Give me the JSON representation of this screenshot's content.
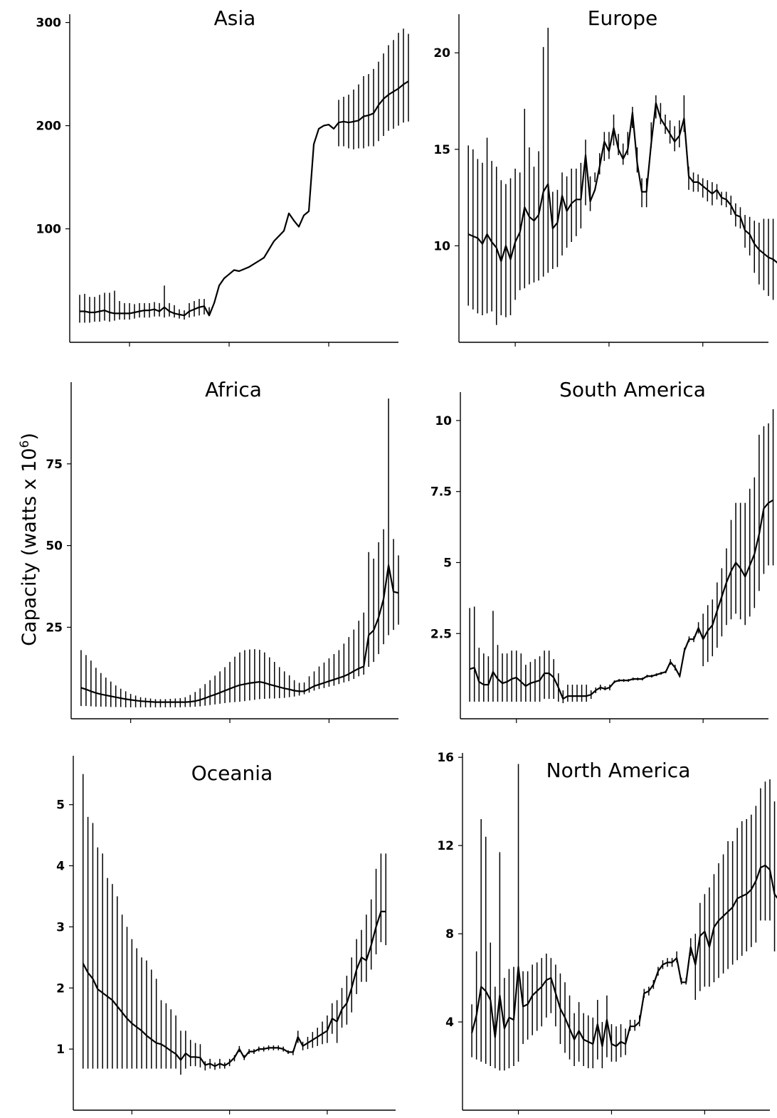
{
  "figure": {
    "ylabel": "Capacity (watts x 10",
    "ylabel_sup": "6",
    "ylabel_close": ")"
  },
  "chart_data": [
    {
      "type": "line",
      "title": "Asia",
      "xlim": [
        1948,
        2014
      ],
      "ylim": [
        -10,
        308
      ],
      "yticks": [
        100,
        200,
        300
      ],
      "xticks": [
        1960,
        1980,
        2000
      ],
      "x_start": 1950,
      "values": [
        20,
        20,
        19,
        19,
        20,
        21,
        19,
        18,
        18,
        18,
        18,
        19,
        20,
        21,
        21,
        22,
        20,
        24,
        20,
        18,
        17,
        16,
        20,
        22,
        24,
        25,
        16,
        28,
        45,
        52,
        56,
        60,
        59,
        61,
        63,
        66,
        69,
        72,
        80,
        88,
        93,
        98,
        115,
        108,
        102,
        113,
        117,
        182,
        197,
        200,
        201,
        197,
        203,
        204,
        203,
        204,
        205,
        209,
        210,
        212,
        220,
        226,
        230,
        233,
        236,
        240,
        243
      ],
      "err_low": [
        9,
        9,
        9,
        10,
        10,
        11,
        10,
        11,
        12,
        12,
        12,
        13,
        14,
        14,
        14,
        15,
        15,
        14,
        15,
        14,
        13,
        12,
        14,
        15,
        16,
        17,
        16
      ],
      "err_high": [
        36,
        37,
        34,
        34,
        36,
        38,
        38,
        40,
        30,
        28,
        28,
        27,
        28,
        28,
        28,
        29,
        28,
        45,
        28,
        26,
        22,
        21,
        28,
        30,
        32,
        32,
        24
      ],
      "err_low2": [
        180,
        180,
        178,
        177,
        178,
        178,
        180,
        180,
        185,
        190,
        195,
        197,
        200,
        203,
        204
      ],
      "err_high2": [
        225,
        228,
        230,
        235,
        240,
        248,
        250,
        255,
        262,
        270,
        278,
        283,
        290,
        294,
        289
      ]
    },
    {
      "type": "line",
      "title": "Europe",
      "xlim": [
        1948,
        2014
      ],
      "ylim": [
        5,
        22
      ],
      "yticks": [
        10,
        15,
        20
      ],
      "xticks": [
        1960,
        1980,
        2000
      ],
      "x_start": 1950,
      "values": [
        10.6,
        10.5,
        10.4,
        10.1,
        10.6,
        10.2,
        9.9,
        9.2,
        10.0,
        9.3,
        10.2,
        10.7,
        12.0,
        11.5,
        11.3,
        11.6,
        12.8,
        13.2,
        10.9,
        11.2,
        12.6,
        11.8,
        12.2,
        12.4,
        12.4,
        14.7,
        12.3,
        12.9,
        14.1,
        15.4,
        14.9,
        16.1,
        15.0,
        14.5,
        15.0,
        16.9,
        14.3,
        12.8,
        12.8,
        15.3,
        17.4,
        16.6,
        16.2,
        15.8,
        15.4,
        15.7,
        16.6,
        13.6,
        13.3,
        13.3,
        13.1,
        12.9,
        12.7,
        12.9,
        12.5,
        12.4,
        12.1,
        11.6,
        11.5,
        10.8,
        10.6,
        10.1,
        9.8,
        9.6,
        9.4,
        9.3,
        9.1
      ],
      "err_low": [
        6.9,
        6.7,
        6.5,
        6.4,
        6.5,
        6.6,
        5.9,
        6.4,
        6.3,
        6.4,
        7.2,
        7.7,
        7.8,
        8.0,
        8.1,
        8.2,
        8.4,
        8.6,
        8.8,
        8.9,
        9.5,
        9.9,
        10.2,
        10.5,
        10.9,
        12.1,
        11.8,
        13.3,
        13.7,
        14.4,
        14.5,
        15.2,
        14.7,
        14.2,
        14.7,
        16.1,
        13.8,
        12.0,
        12.0,
        15.1,
        16.6,
        16.3,
        15.8,
        15.3,
        14.9,
        15.1,
        15.9,
        12.9,
        12.8,
        12.8,
        12.5,
        12.3,
        12.1,
        12.4,
        12.1,
        12.0,
        11.6,
        11.0,
        10.9,
        9.9,
        9.5,
        8.6,
        8.0,
        7.7,
        7.4,
        7.2,
        7.0
      ],
      "err_high": [
        15.2,
        15.0,
        14.5,
        14.3,
        15.6,
        14.4,
        14.1,
        13.4,
        13.2,
        13.5,
        14.0,
        13.8,
        17.1,
        15.1,
        14.1,
        14.9,
        20.3,
        21.3,
        12.8,
        12.9,
        13.8,
        13.6,
        14.0,
        14.0,
        14.3,
        15.5,
        13.6,
        13.8,
        14.8,
        15.9,
        15.9,
        16.8,
        15.8,
        15.3,
        15.9,
        17.2,
        15.1,
        13.5,
        13.5,
        16.4,
        17.8,
        17.4,
        16.8,
        16.5,
        16.2,
        16.5,
        17.8,
        14.1,
        13.8,
        13.7,
        13.5,
        13.4,
        13.3,
        13.2,
        12.8,
        12.8,
        12.6,
        12.2,
        12.0,
        11.6,
        11.5,
        11.3,
        11.2,
        11.4,
        11.4,
        11.4,
        11.4
      ]
    },
    {
      "type": "line",
      "title": "Africa",
      "xlim": [
        1948,
        2014
      ],
      "ylim": [
        -3,
        100
      ],
      "yticks": [
        25,
        50,
        75
      ],
      "xticks": [
        1960,
        1980,
        2000
      ],
      "x_start": 1950,
      "values": [
        6.5,
        6.0,
        5.4,
        4.9,
        4.5,
        4.2,
        3.9,
        3.6,
        3.3,
        3.0,
        2.8,
        2.6,
        2.4,
        2.3,
        2.2,
        2.1,
        2.1,
        2.1,
        2.1,
        2.1,
        2.1,
        2.1,
        2.2,
        2.4,
        2.8,
        3.3,
        3.9,
        4.4,
        5.0,
        5.6,
        6.2,
        6.8,
        7.3,
        7.6,
        7.9,
        8.1,
        8.3,
        8.0,
        7.5,
        7.1,
        6.7,
        6.3,
        6.0,
        5.6,
        5.4,
        5.4,
        6.2,
        7.0,
        7.5,
        8.0,
        8.5,
        9.0,
        9.5,
        10.0,
        10.7,
        11.6,
        12.4,
        13.0,
        22.6,
        24.1,
        28.0,
        33.7,
        44.0,
        35.9,
        35.5
      ],
      "err_low": [
        0.9,
        0.9,
        0.8,
        0.7,
        0.7,
        0.7,
        0.6,
        0.6,
        0.6,
        0.5,
        0.5,
        0.5,
        0.5,
        0.5,
        0.5,
        0.5,
        0.5,
        0.5,
        0.5,
        0.5,
        0.5,
        0.6,
        0.6,
        0.7,
        0.8,
        1.0,
        1.2,
        1.4,
        1.6,
        1.8,
        2.0,
        2.1,
        2.2,
        2.4,
        2.6,
        2.8,
        3.0,
        3.1,
        3.2,
        3.2,
        3.3,
        3.4,
        3.6,
        3.8,
        4.1,
        4.5,
        5.0,
        5.6,
        6.1,
        6.4,
        6.8,
        7.1,
        7.6,
        8.1,
        8.5,
        9.2,
        10.0,
        10.5,
        12.9,
        14.4,
        16.8,
        19.8,
        22.6,
        24.2,
        25.8
      ],
      "err_high": [
        18.0,
        16.5,
        14.8,
        12.6,
        11.0,
        9.6,
        8.4,
        7.2,
        6.2,
        5.4,
        4.6,
        4.1,
        3.6,
        3.4,
        3.2,
        3.0,
        3.0,
        3.0,
        3.1,
        3.2,
        3.3,
        3.6,
        4.3,
        5.2,
        6.3,
        7.6,
        8.8,
        10.2,
        11.5,
        12.8,
        14.4,
        16.0,
        17.3,
        18.0,
        18.2,
        18.3,
        18.1,
        17.3,
        15.8,
        14.4,
        12.8,
        11.5,
        10.3,
        8.8,
        8.0,
        8.1,
        10.0,
        11.5,
        13.0,
        14.2,
        15.5,
        16.8,
        18.0,
        20.0,
        22.0,
        24.3,
        27.0,
        29.5,
        48.0,
        46.0,
        51.0,
        55.0,
        95.0,
        52.0,
        47.0
      ]
    },
    {
      "type": "line",
      "title": "South America",
      "xlim": [
        1948,
        2014
      ],
      "ylim": [
        -0.5,
        11
      ],
      "yticks": [
        2.5,
        5,
        7.5,
        10
      ],
      "tick_labels": [
        "2.5",
        "5",
        "7.5",
        "10"
      ],
      "xticks": [
        1960,
        1980,
        2000
      ],
      "x_start": 1950,
      "values": [
        1.25,
        1.3,
        0.8,
        0.7,
        0.7,
        1.15,
        0.9,
        0.75,
        0.8,
        0.9,
        0.95,
        0.8,
        0.65,
        0.75,
        0.8,
        0.85,
        1.1,
        1.1,
        0.95,
        0.6,
        0.2,
        0.3,
        0.3,
        0.3,
        0.3,
        0.3,
        0.35,
        0.5,
        0.6,
        0.55,
        0.6,
        0.8,
        0.85,
        0.85,
        0.85,
        0.9,
        0.9,
        0.9,
        1.0,
        1.0,
        1.05,
        1.1,
        1.15,
        1.5,
        1.3,
        1.0,
        1.9,
        2.3,
        2.3,
        2.7,
        2.3,
        2.6,
        2.8,
        3.3,
        3.8,
        4.3,
        4.7,
        5.0,
        4.8,
        4.5,
        4.9,
        5.3,
        6.0,
        6.9,
        7.1,
        7.2
      ],
      "err_low": [
        0.1,
        0.1,
        0.1,
        0.1,
        0.1,
        0.1,
        0.1,
        0.1,
        0.1,
        0.1,
        0.1,
        0.1,
        0.1,
        0.1,
        0.1,
        0.1,
        0.2,
        0.2,
        0.2,
        0.1,
        0.05,
        0.1,
        0.1,
        0.1,
        0.1,
        0.1,
        0.2,
        0.4,
        0.5,
        0.5,
        0.5,
        0.75,
        0.8,
        0.8,
        0.8,
        0.85,
        0.85,
        0.85,
        0.95,
        0.95,
        1.0,
        1.05,
        1.1,
        1.4,
        1.2,
        0.95,
        1.85,
        2.2,
        2.2,
        2.5,
        1.35,
        1.5,
        1.7,
        2.0,
        2.4,
        2.8,
        3.0,
        3.2,
        3.0,
        2.8,
        3.1,
        3.4,
        4.0,
        4.6,
        4.9,
        4.9
      ],
      "err_high": [
        3.4,
        3.45,
        2.0,
        1.8,
        1.7,
        3.3,
        2.1,
        1.8,
        1.8,
        1.9,
        1.9,
        1.8,
        1.4,
        1.5,
        1.6,
        1.7,
        1.9,
        1.9,
        1.6,
        1.1,
        0.5,
        0.7,
        0.7,
        0.7,
        0.7,
        0.7,
        0.5,
        0.6,
        0.7,
        0.65,
        0.7,
        0.85,
        0.9,
        0.9,
        0.9,
        0.95,
        0.95,
        0.95,
        1.05,
        1.05,
        1.1,
        1.15,
        1.2,
        1.6,
        1.4,
        1.1,
        2.0,
        2.4,
        2.4,
        2.9,
        3.2,
        3.5,
        3.7,
        4.3,
        4.8,
        5.5,
        6.5,
        7.1,
        7.1,
        7.1,
        7.6,
        8.0,
        9.5,
        9.8,
        9.9,
        10.4
      ]
    },
    {
      "type": "line",
      "title": "Oceania",
      "xlim": [
        1948,
        2014
      ],
      "ylim": [
        0,
        5.8
      ],
      "yticks": [
        1,
        2,
        3,
        4,
        5
      ],
      "xticks": [
        1960,
        1980,
        2000
      ],
      "x_start": 1950,
      "values": [
        2.4,
        2.25,
        2.15,
        1.98,
        1.92,
        1.86,
        1.8,
        1.7,
        1.6,
        1.5,
        1.42,
        1.36,
        1.3,
        1.22,
        1.16,
        1.1,
        1.08,
        1.03,
        0.97,
        0.92,
        0.82,
        0.93,
        0.87,
        0.87,
        0.86,
        0.74,
        0.76,
        0.72,
        0.76,
        0.73,
        0.78,
        0.86,
        1.0,
        0.86,
        0.96,
        0.96,
        1.0,
        1.0,
        1.02,
        1.02,
        1.02,
        1.0,
        0.95,
        0.95,
        1.2,
        1.05,
        1.1,
        1.15,
        1.2,
        1.25,
        1.3,
        1.5,
        1.45,
        1.65,
        1.75,
        2.0,
        2.3,
        2.5,
        2.45,
        2.7,
        3.0,
        3.25,
        3.25
      ],
      "err_low": [
        0.68,
        0.68,
        0.68,
        0.68,
        0.68,
        0.68,
        0.68,
        0.68,
        0.68,
        0.68,
        0.68,
        0.68,
        0.68,
        0.68,
        0.68,
        0.68,
        0.68,
        0.68,
        0.68,
        0.68,
        0.58,
        0.68,
        0.72,
        0.72,
        0.7,
        0.65,
        0.68,
        0.66,
        0.68,
        0.68,
        0.72,
        0.8,
        0.95,
        0.82,
        0.92,
        0.92,
        0.96,
        0.96,
        0.98,
        0.98,
        0.98,
        0.96,
        0.92,
        0.9,
        1.1,
        0.98,
        1.0,
        1.02,
        1.05,
        1.08,
        1.1,
        1.25,
        1.1,
        1.35,
        1.4,
        1.6,
        1.9,
        2.1,
        2.1,
        2.3,
        2.55,
        2.75,
        2.7
      ],
      "err_high": [
        5.5,
        4.8,
        4.7,
        4.3,
        4.2,
        3.8,
        3.7,
        3.5,
        3.2,
        3.0,
        2.8,
        2.65,
        2.5,
        2.45,
        2.3,
        2.15,
        1.8,
        1.75,
        1.65,
        1.55,
        1.3,
        1.3,
        1.15,
        1.1,
        1.08,
        0.8,
        0.84,
        0.78,
        0.84,
        0.78,
        0.84,
        0.9,
        1.05,
        0.9,
        1.0,
        1.0,
        1.04,
        1.04,
        1.06,
        1.06,
        1.06,
        1.04,
        0.98,
        0.98,
        1.3,
        1.12,
        1.2,
        1.28,
        1.35,
        1.45,
        1.55,
        1.75,
        1.8,
        2.0,
        2.2,
        2.5,
        2.8,
        2.95,
        3.2,
        3.45,
        3.95,
        4.2,
        4.2
      ]
    },
    {
      "type": "line",
      "title": "North America",
      "xlim": [
        1948,
        2014
      ],
      "ylim": [
        0,
        16.2
      ],
      "yticks": [
        4,
        8,
        12,
        16
      ],
      "xticks": [
        1960,
        1980,
        2000
      ],
      "x_start": 1950,
      "values": [
        3.5,
        4.3,
        5.6,
        5.4,
        5.0,
        3.3,
        5.2,
        3.7,
        4.2,
        4.1,
        6.5,
        4.7,
        4.8,
        5.2,
        5.4,
        5.6,
        5.9,
        6.0,
        5.3,
        4.6,
        4.2,
        3.7,
        3.2,
        3.6,
        3.2,
        3.1,
        3.0,
        3.9,
        2.9,
        4.1,
        3.0,
        2.9,
        3.1,
        3.0,
        3.8,
        3.8,
        4.0,
        5.3,
        5.4,
        5.7,
        6.3,
        6.6,
        6.7,
        6.7,
        6.9,
        5.8,
        5.8,
        7.4,
        6.6,
        7.9,
        8.1,
        7.4,
        8.3,
        8.6,
        8.8,
        9.0,
        9.2,
        9.6,
        9.7,
        9.8,
        10.0,
        10.4,
        11.0,
        11.1,
        10.9,
        9.8,
        9.5
      ],
      "err_low": [
        2.4,
        2.3,
        2.2,
        2.1,
        2.0,
        1.9,
        1.8,
        1.8,
        1.9,
        2.0,
        2.2,
        3.0,
        3.2,
        3.4,
        3.6,
        3.8,
        4.2,
        4.4,
        3.8,
        3.0,
        2.6,
        2.3,
        2.0,
        2.2,
        2.0,
        1.9,
        1.9,
        2.3,
        1.9,
        2.4,
        2.2,
        2.2,
        2.4,
        2.5,
        3.6,
        3.6,
        3.8,
        5.1,
        5.2,
        5.5,
        6.1,
        6.4,
        6.5,
        6.5,
        6.7,
        5.7,
        5.7,
        7.0,
        5.0,
        5.4,
        5.6,
        5.6,
        5.8,
        6.0,
        6.2,
        6.4,
        6.6,
        6.8,
        7.0,
        7.2,
        7.4,
        7.6,
        8.6,
        8.6,
        8.6,
        7.2,
        7.0
      ],
      "err_high": [
        4.8,
        7.2,
        13.2,
        12.4,
        7.6,
        5.6,
        11.7,
        6.0,
        6.4,
        6.5,
        15.7,
        6.3,
        6.3,
        6.6,
        6.7,
        6.9,
        7.1,
        6.9,
        6.6,
        6.2,
        5.8,
        5.2,
        4.4,
        4.9,
        4.4,
        4.3,
        4.2,
        5.0,
        4.0,
        5.2,
        3.9,
        3.8,
        3.9,
        3.7,
        4.1,
        4.1,
        4.3,
        5.5,
        5.6,
        5.9,
        6.5,
        6.8,
        6.9,
        6.9,
        7.2,
        6.0,
        6.0,
        7.8,
        8.0,
        9.4,
        9.8,
        10.1,
        10.7,
        11.2,
        11.6,
        12.2,
        12.2,
        12.8,
        13.1,
        13.2,
        13.4,
        13.8,
        14.6,
        14.9,
        15.0,
        14.0,
        13.7
      ]
    }
  ]
}
